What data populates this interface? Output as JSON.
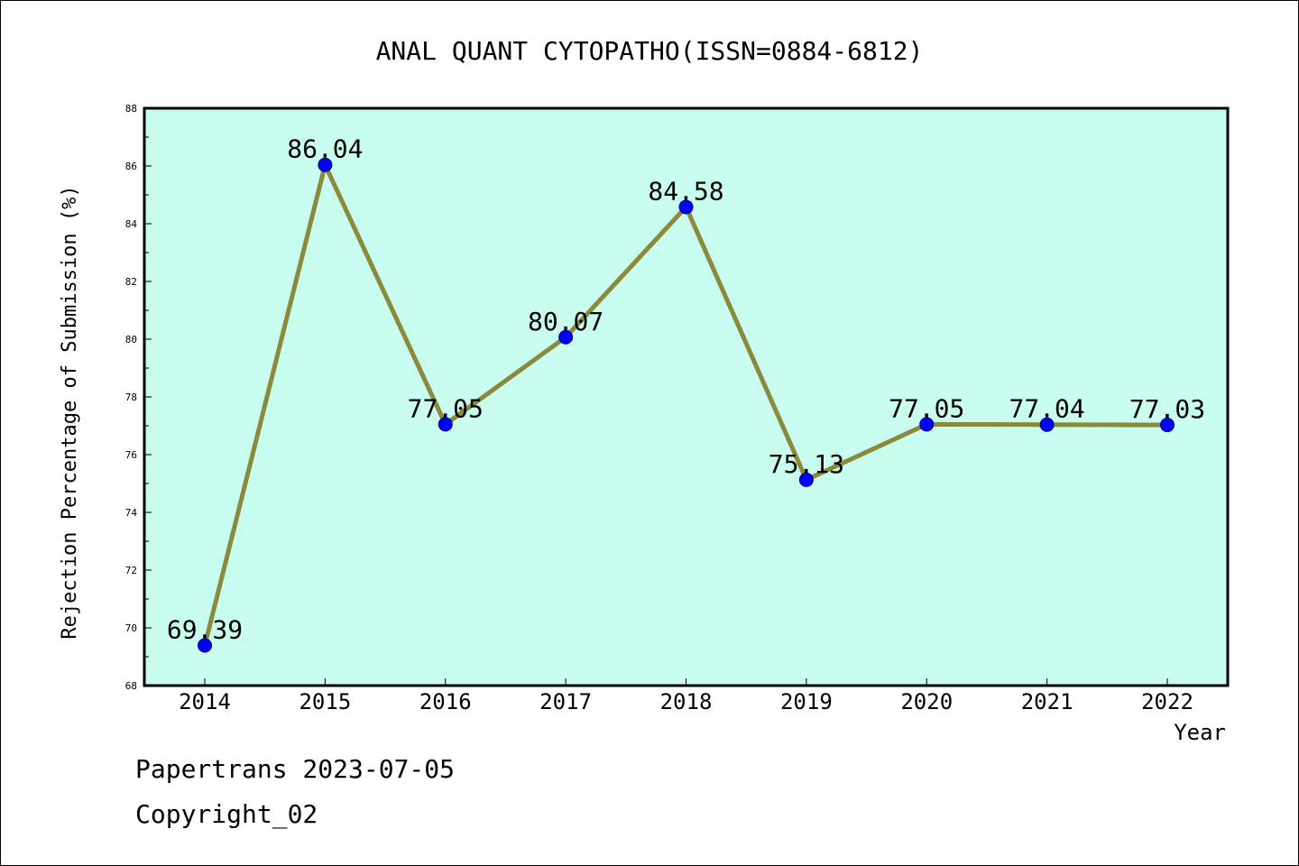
{
  "chart_data": {
    "type": "line",
    "title": "ANAL QUANT CYTOPATHO(ISSN=0884-6812)",
    "xlabel": "Year",
    "ylabel": "Rejection Percentage of Submission (%)",
    "x": [
      "2014",
      "2015",
      "2016",
      "2017",
      "2018",
      "2019",
      "2020",
      "2021",
      "2022"
    ],
    "values": [
      69.39,
      86.04,
      77.05,
      80.07,
      84.58,
      75.13,
      77.05,
      77.04,
      77.03
    ],
    "data_labels": [
      "69.39",
      "86.04",
      "77.05",
      "80.07",
      "84.58",
      "75.13",
      "77.05",
      "77.04",
      "77.03"
    ],
    "ylim": [
      68,
      88
    ],
    "yticks": [
      "68",
      "70",
      "72",
      "74",
      "76",
      "78",
      "80",
      "82",
      "84",
      "86",
      "88"
    ],
    "grid": false,
    "legend": "none",
    "colors": {
      "plot_background": "#c8fcee",
      "line": "#8b8a3a",
      "marker": "#0000ff"
    }
  },
  "footer": {
    "line1": "Papertrans 2023-07-05",
    "line2": "Copyright_02"
  }
}
